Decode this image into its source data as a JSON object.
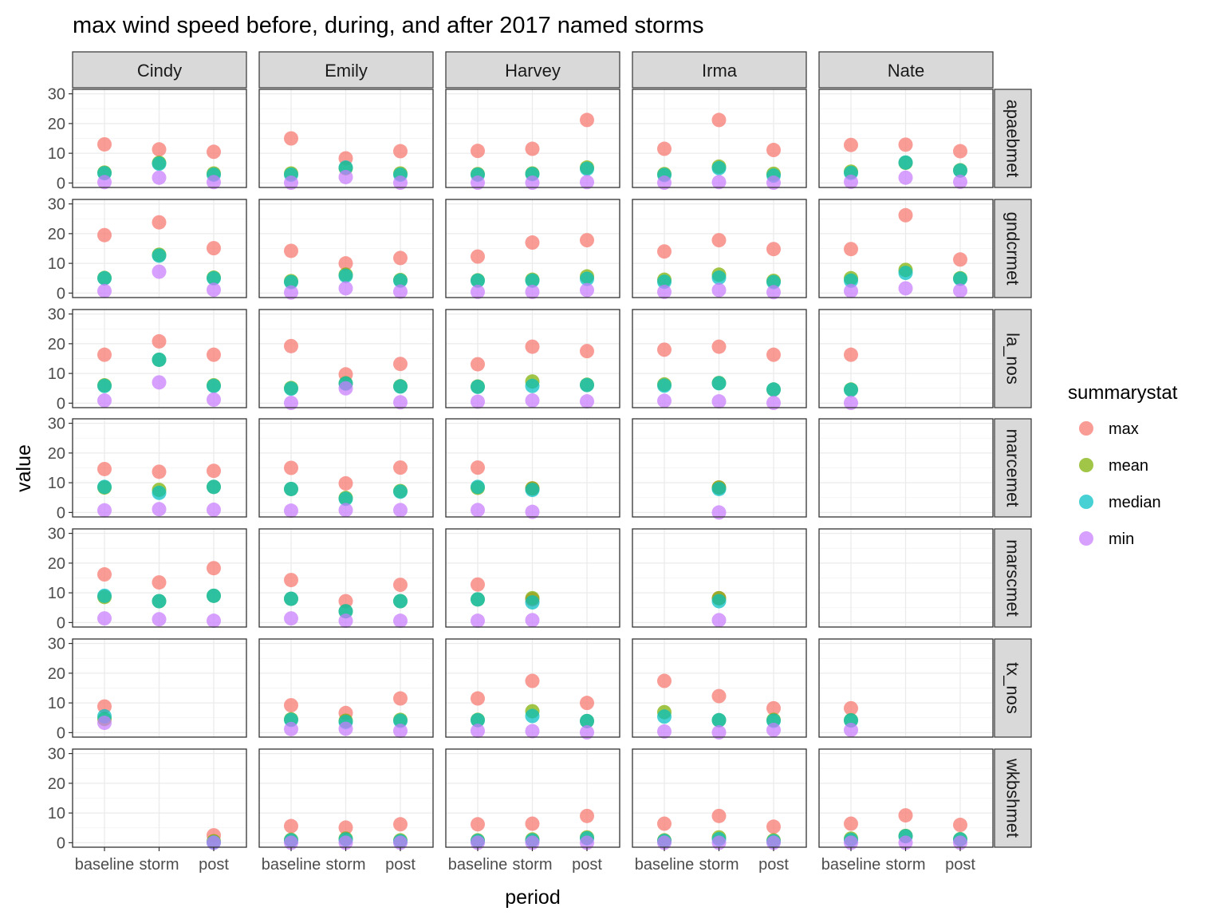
{
  "chart_data": {
    "type": "scatter",
    "title": "max wind speed before, during, and after 2017 named storms",
    "xlabel": "period",
    "ylabel": "value",
    "ylim": [
      -1.5,
      31.5
    ],
    "yticks": [
      0,
      10,
      20,
      30
    ],
    "grid": true,
    "legend_position": "right",
    "legend_title": "summarystat",
    "periods": [
      "baseline",
      "storm",
      "post"
    ],
    "storms": [
      "Cindy",
      "Emily",
      "Harvey",
      "Irma",
      "Nate"
    ],
    "stations": [
      "apaebmet",
      "gndcrmet",
      "la_nos",
      "marcemet",
      "marscmet",
      "tx_nos",
      "wkbshmet"
    ],
    "series": [
      {
        "name": "max",
        "color": "#F8766D"
      },
      {
        "name": "mean",
        "color": "#7CAE00"
      },
      {
        "name": "median",
        "color": "#00BFC4"
      },
      {
        "name": "min",
        "color": "#C77CFF"
      }
    ],
    "panels": {
      "apaebmet": {
        "Cindy": [
          [
            13,
            3.5,
            3.3,
            0.3
          ],
          [
            11.3,
            6.8,
            6.5,
            1.8
          ],
          [
            10.5,
            3.2,
            2.8,
            0.3
          ]
        ],
        "Emily": [
          [
            15,
            3.2,
            2.8,
            0.1
          ],
          [
            8.3,
            5,
            5.2,
            2
          ],
          [
            10.7,
            3.2,
            2.8,
            0.1
          ]
        ],
        "Harvey": [
          [
            10.8,
            3,
            2.8,
            0.1
          ],
          [
            11.5,
            3.2,
            3,
            0.1
          ],
          [
            21.2,
            5.2,
            4.8,
            0.3
          ]
        ],
        "Irma": [
          [
            11.5,
            3,
            2.7,
            0.1
          ],
          [
            21.2,
            5.5,
            5,
            0.3
          ],
          [
            11.1,
            3.1,
            2.5,
            0.1
          ]
        ],
        "Nate": [
          [
            12.8,
            3.8,
            3.4,
            0.4
          ],
          [
            12.9,
            6.8,
            6.9,
            1.8
          ],
          [
            10.7,
            4.3,
            4.2,
            0.4
          ]
        ]
      },
      "gndcrmet": {
        "Cindy": [
          [
            19.5,
            5.1,
            5,
            0.7
          ],
          [
            23.8,
            12.9,
            12.6,
            7.2
          ],
          [
            15.1,
            5.2,
            5,
            1.1
          ]
        ],
        "Emily": [
          [
            14.2,
            4,
            3.7,
            0.2
          ],
          [
            10,
            6.2,
            5.8,
            1.6
          ],
          [
            11.8,
            4.4,
            4.2,
            0.5
          ]
        ],
        "Harvey": [
          [
            12.3,
            4.3,
            4.2,
            0.4
          ],
          [
            17,
            4.5,
            4.2,
            0.4
          ],
          [
            17.8,
            5.6,
            4.8,
            1
          ]
        ],
        "Irma": [
          [
            14,
            4.5,
            3.8,
            0.4
          ],
          [
            17.8,
            6.2,
            5.2,
            1
          ],
          [
            14.8,
            4.1,
            3.7,
            0.3
          ]
        ],
        "Nate": [
          [
            14.8,
            5,
            4.2,
            0.7
          ],
          [
            26.2,
            7.8,
            6.8,
            1.6
          ],
          [
            11.3,
            5,
            4.8,
            0.8
          ]
        ]
      },
      "la_nos": {
        "Cindy": [
          [
            16.3,
            6,
            5.8,
            0.9
          ],
          [
            20.8,
            14.6,
            14.6,
            7
          ],
          [
            16.3,
            6,
            5.8,
            1.2
          ]
        ],
        "Emily": [
          [
            19.2,
            5.1,
            4.9,
            0.1
          ],
          [
            9.7,
            6.7,
            6.6,
            5
          ],
          [
            13.2,
            5.7,
            5.6,
            0.3
          ]
        ],
        "Harvey": [
          [
            13.1,
            5.6,
            5.5,
            0.5
          ],
          [
            19,
            7.3,
            5.8,
            0.9
          ],
          [
            17.5,
            6.2,
            6.1,
            0.6
          ]
        ],
        "Irma": [
          [
            18,
            6.3,
            5.9,
            0.8
          ],
          [
            19,
            6.8,
            6.7,
            0.6
          ],
          [
            16.3,
            4.6,
            4.6,
            0.1
          ]
        ],
        "Nate": [
          [
            16.3,
            4.6,
            4.5,
            0.1
          ],
          null,
          null
        ]
      },
      "marcemet": {
        "Cindy": [
          [
            14.6,
            8.4,
            8.6,
            0.7
          ],
          [
            13.7,
            7.6,
            6.6,
            1.1
          ],
          [
            14,
            8.6,
            8.6,
            0.9
          ]
        ],
        "Emily": [
          [
            15,
            7.9,
            7.9,
            0.6
          ],
          [
            9.8,
            4.9,
            4.6,
            0.8
          ],
          [
            15.1,
            7.2,
            7,
            0.8
          ]
        ],
        "Harvey": [
          [
            15.1,
            8.3,
            8.6,
            0.8
          ],
          [
            8.1,
            8.1,
            7.6,
            0.2
          ],
          null
        ],
        "Irma": [
          null,
          [
            8.4,
            8.4,
            7.9,
            0
          ],
          null
        ],
        "Nate": [
          null,
          null,
          null
        ]
      },
      "marscmet": {
        "Cindy": [
          [
            16.2,
            8.6,
            9,
            1.4
          ],
          [
            13.5,
            7.2,
            7.2,
            1.1
          ],
          [
            18.3,
            9,
            9,
            0.6
          ]
        ],
        "Emily": [
          [
            14.3,
            8,
            8,
            1.4
          ],
          [
            7.2,
            3.8,
            3.8,
            0.6
          ],
          [
            12.7,
            7.2,
            7.2,
            0.6
          ]
        ],
        "Harvey": [
          [
            12.8,
            7.8,
            7.8,
            0.6
          ],
          [
            7.8,
            8.2,
            6.8,
            0.8
          ],
          null
        ],
        "Irma": [
          null,
          [
            8.2,
            8.2,
            7.2,
            0.8
          ],
          null
        ],
        "Nate": [
          null,
          null,
          null
        ]
      },
      "tx_nos": {
        "Cindy": [
          [
            8.8,
            4.6,
            5.5,
            3.3
          ],
          null,
          null
        ],
        "Emily": [
          [
            9.2,
            4.5,
            4.3,
            1.2
          ],
          [
            6.6,
            4,
            3.6,
            1.3
          ],
          [
            11.5,
            4.3,
            4,
            0.6
          ]
        ],
        "Harvey": [
          [
            11.5,
            4.3,
            4.2,
            0.6
          ],
          [
            17.4,
            7.2,
            5.6,
            0.5
          ],
          [
            10,
            3.9,
            3.9,
            0.1
          ]
        ],
        "Irma": [
          [
            17.4,
            6.9,
            5.4,
            0.4
          ],
          [
            12.3,
            4.2,
            4.2,
            0.1
          ],
          [
            8.2,
            4.3,
            4,
            0.9
          ]
        ],
        "Nate": [
          [
            8.2,
            4.2,
            4.1,
            0.9
          ],
          null,
          null
        ]
      },
      "wkbshmet": {
        "Cindy": [
          null,
          null,
          [
            2.5,
            0.5,
            0.1,
            0
          ]
        ],
        "Emily": [
          [
            5.6,
            1,
            0.8,
            0
          ],
          [
            5.1,
            1.4,
            1.1,
            0
          ],
          [
            6.2,
            0.8,
            0.5,
            0
          ]
        ],
        "Harvey": [
          [
            6.2,
            0.8,
            0.6,
            0
          ],
          [
            6.4,
            1.1,
            0.8,
            0
          ],
          [
            9,
            1.8,
            1.5,
            0
          ]
        ],
        "Irma": [
          [
            6.4,
            0.8,
            0.6,
            0
          ],
          [
            9,
            1.8,
            1.2,
            0
          ],
          [
            5.4,
            0.8,
            0.5,
            0
          ]
        ],
        "Nate": [
          [
            6.4,
            1.4,
            1,
            0
          ],
          [
            9.2,
            2.3,
            2.2,
            0
          ],
          [
            6,
            1.2,
            1.1,
            0
          ]
        ]
      }
    }
  }
}
